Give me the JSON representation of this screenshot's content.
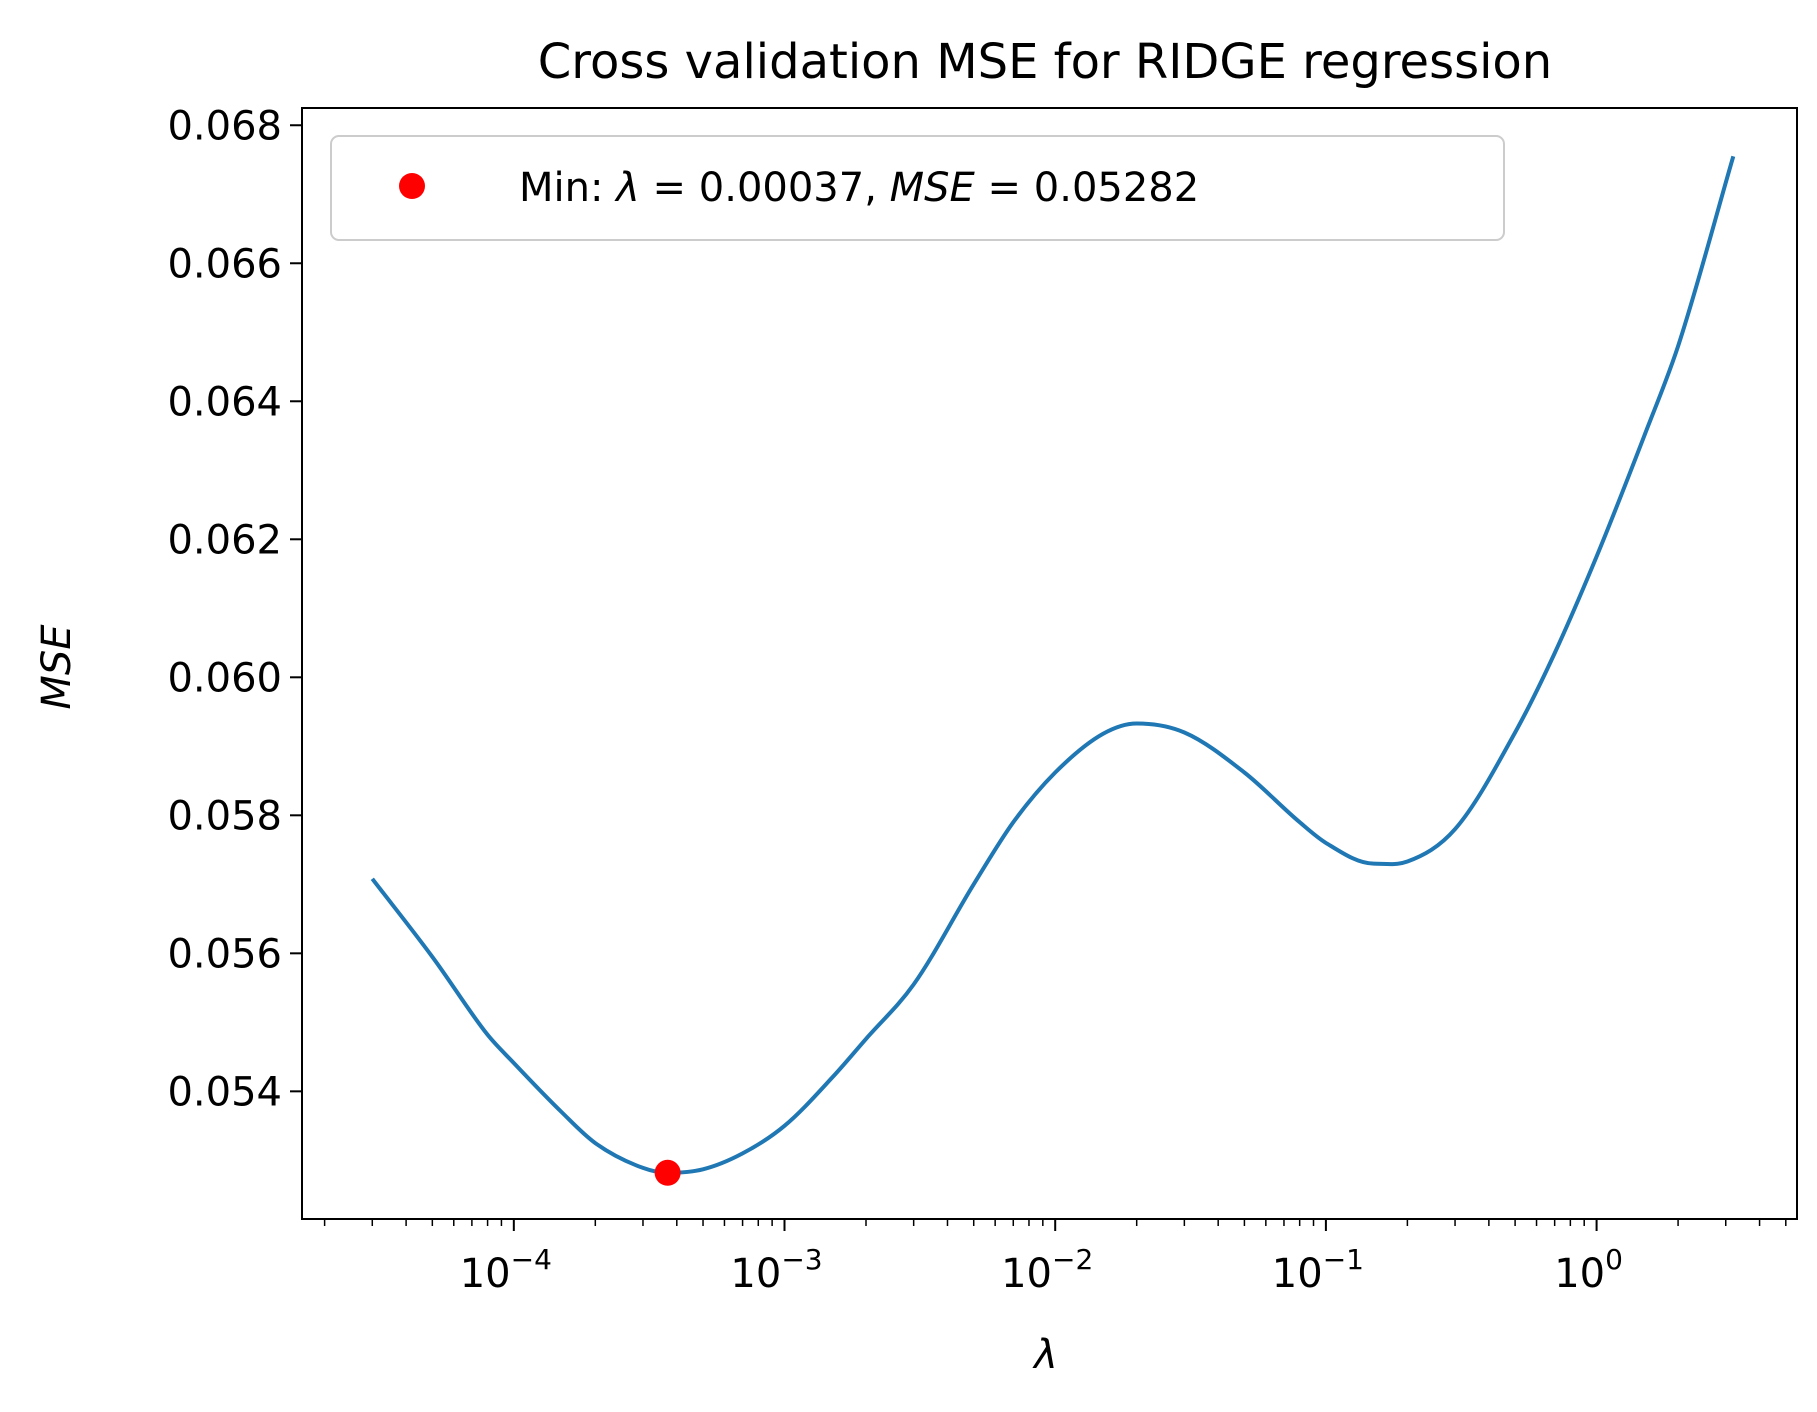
{
  "chart_data": {
    "type": "line",
    "title": "Cross validation MSE for RIDGE regression",
    "xlabel": "λ",
    "ylabel": "MSE",
    "xscale": "log",
    "xlim": [
      1.65e-05,
      5.5
    ],
    "ylim": [
      0.05215,
      0.06825
    ],
    "grid": false,
    "legend_position": "top-left",
    "x_ticks": [
      {
        "base": "10",
        "exp": "−4",
        "value": 0.0001
      },
      {
        "base": "10",
        "exp": "−3",
        "value": 0.001
      },
      {
        "base": "10",
        "exp": "−2",
        "value": 0.01
      },
      {
        "base": "10",
        "exp": "−1",
        "value": 0.1
      },
      {
        "base": "10",
        "exp": "0",
        "value": 1
      }
    ],
    "y_ticks": [
      0.054,
      0.056,
      0.058,
      0.06,
      0.062,
      0.064,
      0.066,
      0.068
    ],
    "y_tick_labels": [
      "0.054",
      "0.056",
      "0.058",
      "0.060",
      "0.062",
      "0.064",
      "0.066",
      "0.068"
    ],
    "series": [
      {
        "color": "#1f77b4",
        "points": [
          [
            3e-05,
            0.05708
          ],
          [
            5e-05,
            0.05595
          ],
          [
            8e-05,
            0.05482
          ],
          [
            0.0001,
            0.05441
          ],
          [
            0.00015,
            0.0537
          ],
          [
            0.0002,
            0.05325
          ],
          [
            0.0003,
            0.05289
          ],
          [
            0.00037,
            0.05282
          ],
          [
            0.0005,
            0.05287
          ],
          [
            0.0007,
            0.0531
          ],
          [
            0.001,
            0.0535
          ],
          [
            0.0015,
            0.0542
          ],
          [
            0.002,
            0.05476
          ],
          [
            0.003,
            0.05555
          ],
          [
            0.005,
            0.057
          ],
          [
            0.007,
            0.0579
          ],
          [
            0.01,
            0.05862
          ],
          [
            0.015,
            0.05918
          ],
          [
            0.02,
            0.05933
          ],
          [
            0.03,
            0.0592
          ],
          [
            0.05,
            0.05862
          ],
          [
            0.08,
            0.0579
          ],
          [
            0.1,
            0.0576
          ],
          [
            0.15,
            0.0573
          ],
          [
            0.2,
            0.05733
          ],
          [
            0.3,
            0.0578
          ],
          [
            0.5,
            0.0592
          ],
          [
            0.7,
            0.06035
          ],
          [
            1.0,
            0.06175
          ],
          [
            1.5,
            0.0635
          ],
          [
            2.0,
            0.0648
          ],
          [
            3.2,
            0.06755
          ]
        ]
      }
    ],
    "marker": {
      "x": 0.00037,
      "y": 0.05282,
      "color": "#ff0000"
    },
    "legend": {
      "prefix": "Min: ",
      "lambda_symbol": "λ",
      "lambda_value": " = 0.00037, ",
      "mse_symbol": "MSE",
      "mse_value": " = 0.05282"
    }
  }
}
